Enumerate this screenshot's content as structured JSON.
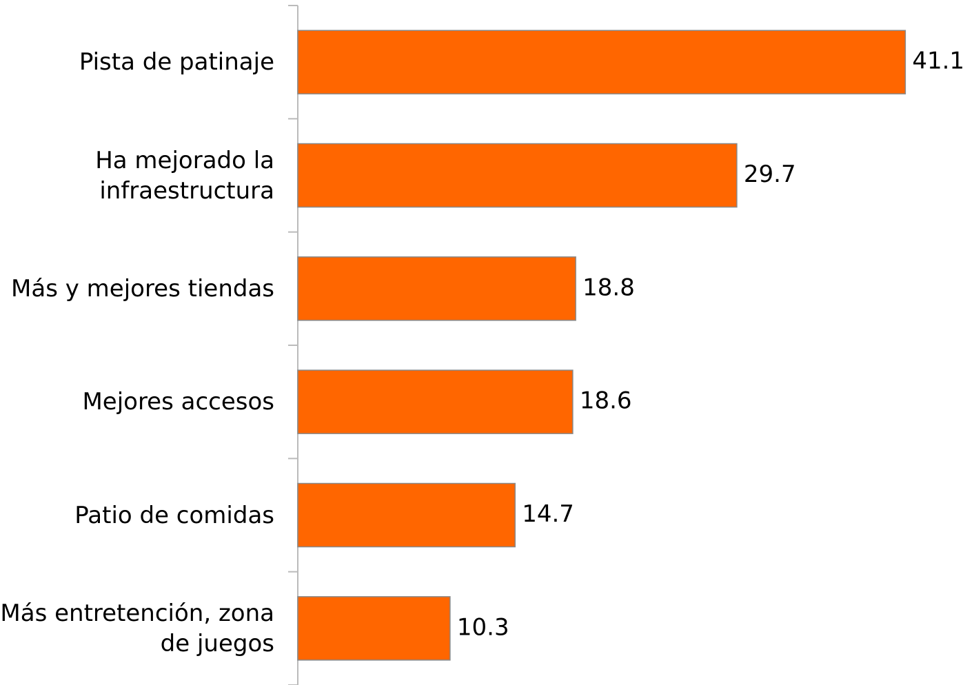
{
  "chart_data": {
    "type": "bar",
    "orientation": "horizontal",
    "categories": [
      "Pista de patinaje",
      "Ha mejorado la\ninfraestructura",
      "Más y mejores tiendas",
      "Mejores accesos",
      "Patio de comidas",
      "Más entretención, zona\nde juegos"
    ],
    "values": [
      41.1,
      29.7,
      18.8,
      18.6,
      14.7,
      10.3
    ],
    "color": "#ff6600",
    "xlim": [
      0,
      45
    ]
  }
}
